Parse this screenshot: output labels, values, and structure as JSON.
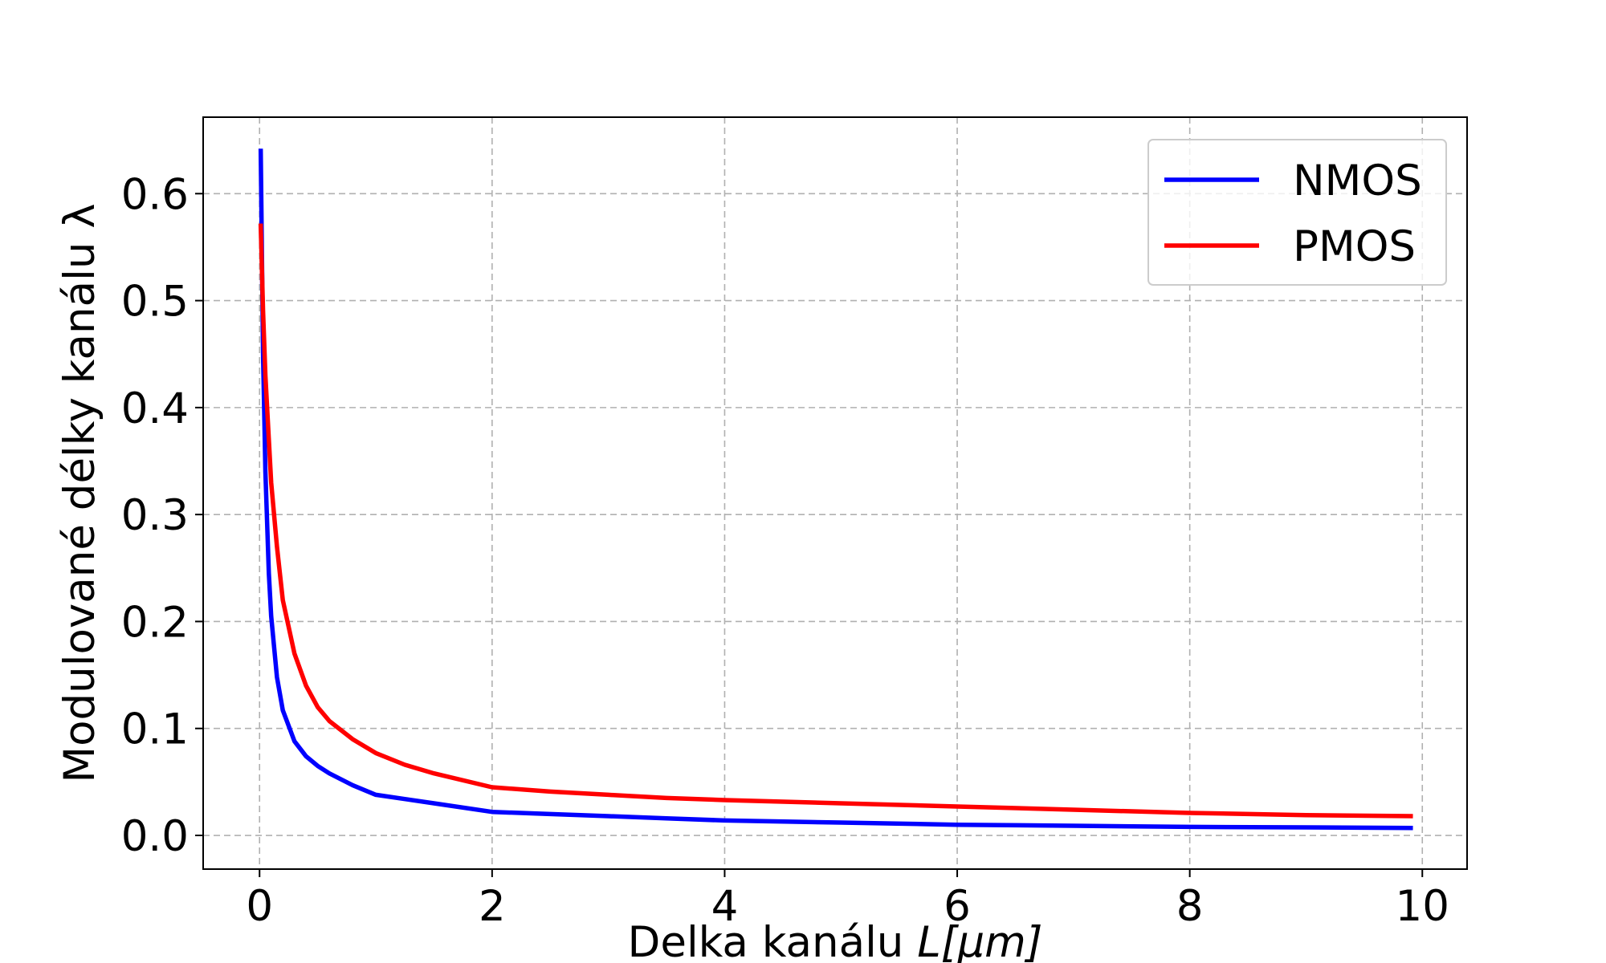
{
  "chart_data": {
    "type": "line",
    "title": "",
    "xlabel": "Delka kanálu ",
    "xlabel_math": "L[μm]",
    "ylabel": "Modulované délky kanálu λ",
    "xlim": [
      -0.485,
      10.385
    ],
    "ylim": [
      -0.0315,
      0.6715
    ],
    "xticks": [
      0,
      2,
      4,
      6,
      8,
      10
    ],
    "xtick_labels": [
      "0",
      "2",
      "4",
      "6",
      "8",
      "10"
    ],
    "yticks": [
      0.0,
      0.1,
      0.2,
      0.3,
      0.4,
      0.5,
      0.6
    ],
    "ytick_labels": [
      "0.0",
      "0.1",
      "0.2",
      "0.3",
      "0.4",
      "0.5",
      "0.6"
    ],
    "grid": true,
    "legend_position": "top-right",
    "x": [
      0.01,
      0.03,
      0.05,
      0.08,
      0.1,
      0.15,
      0.2,
      0.3,
      0.4,
      0.5,
      0.6,
      0.8,
      1.0,
      1.25,
      1.5,
      2.0,
      2.5,
      3.0,
      3.5,
      4.0,
      5.0,
      6.0,
      7.0,
      8.0,
      9.0,
      9.9
    ],
    "series": [
      {
        "name": "NMOS",
        "color": "#0000ff",
        "values": [
          0.64,
          0.45,
          0.34,
          0.245,
          0.205,
          0.148,
          0.117,
          0.088,
          0.074,
          0.065,
          0.058,
          0.047,
          0.038,
          0.034,
          0.03,
          0.022,
          0.02,
          0.018,
          0.016,
          0.014,
          0.012,
          0.01,
          0.009,
          0.008,
          0.0075,
          0.007
        ]
      },
      {
        "name": "PMOS",
        "color": "#ff0000",
        "values": [
          0.57,
          0.49,
          0.43,
          0.37,
          0.33,
          0.27,
          0.22,
          0.17,
          0.14,
          0.12,
          0.107,
          0.09,
          0.077,
          0.066,
          0.058,
          0.045,
          0.041,
          0.038,
          0.035,
          0.033,
          0.03,
          0.027,
          0.024,
          0.021,
          0.019,
          0.018
        ]
      }
    ]
  }
}
